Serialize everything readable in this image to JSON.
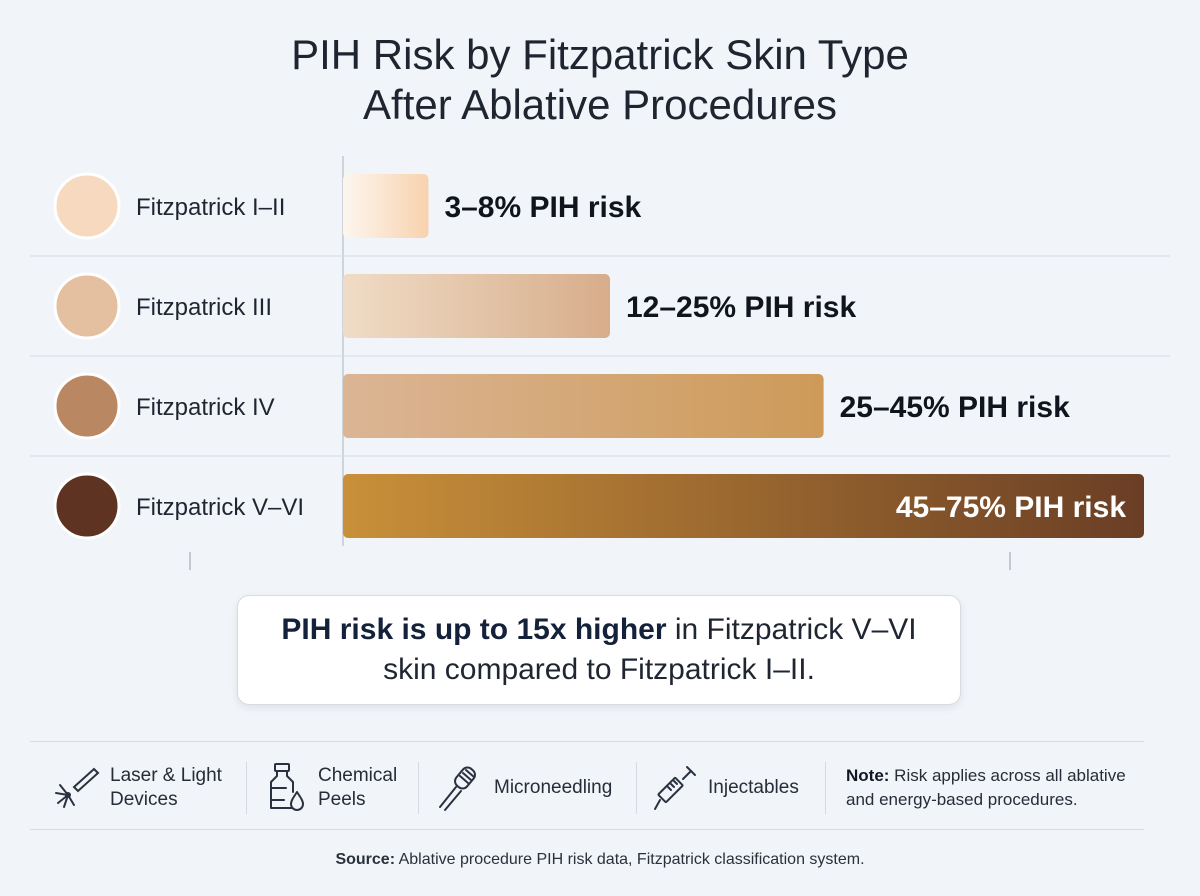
{
  "title_line1": "PIH Risk by Fitzpatrick Skin Type",
  "title_line2": "After Ablative Procedures",
  "chart_data": {
    "type": "bar",
    "orientation": "horizontal",
    "title": "PIH Risk by Fitzpatrick Skin Type After Ablative Procedures",
    "categories": [
      "Fitzpatrick I–II",
      "Fitzpatrick III",
      "Fitzpatrick IV",
      "Fitzpatrick V–VI"
    ],
    "value_labels": [
      "3–8% PIH risk",
      "12–25% PIH risk",
      "25–45% PIH risk",
      "45–75% PIH risk"
    ],
    "ranges": [
      [
        3,
        8
      ],
      [
        12,
        25
      ],
      [
        25,
        45
      ],
      [
        45,
        75
      ]
    ],
    "values": [
      8,
      25,
      45,
      75
    ],
    "xlim": [
      0,
      75
    ],
    "grid": false,
    "swatch_colors": [
      "#f7d9c0",
      "#e5c0a0",
      "#b98762",
      "#5e3322"
    ],
    "bar_gradients": [
      [
        "#fdf6ef",
        "#f8d2ae"
      ],
      [
        "#f0dcc6",
        "#d7ad8b"
      ],
      [
        "#dbb595",
        "#cd9a58"
      ],
      [
        "#c99039",
        "#6a3e25"
      ]
    ]
  },
  "callout": {
    "bold": "PIH risk is up to 15x higher",
    "rest_line1": " in Fitzpatrick V–VI",
    "line2": "skin compared to Fitzpatrick I–II."
  },
  "footer": {
    "items": [
      {
        "icon": "laser-icon",
        "line1": "Laser & Light",
        "line2": "Devices"
      },
      {
        "icon": "bottle-drop-icon",
        "line1": "Chemical",
        "line2": "Peels"
      },
      {
        "icon": "microneedling-roller-icon",
        "line1": "Microneedling",
        "line2": ""
      },
      {
        "icon": "syringe-icon",
        "line1": "Injectables",
        "line2": ""
      }
    ],
    "note_label": "Note:",
    "note_text_line1": " Risk applies across all ablative",
    "note_text_line2": "and energy-based procedures."
  },
  "source_label": "Source:",
  "source_text": " Ablative procedure PIH risk data, Fitzpatrick classification system."
}
